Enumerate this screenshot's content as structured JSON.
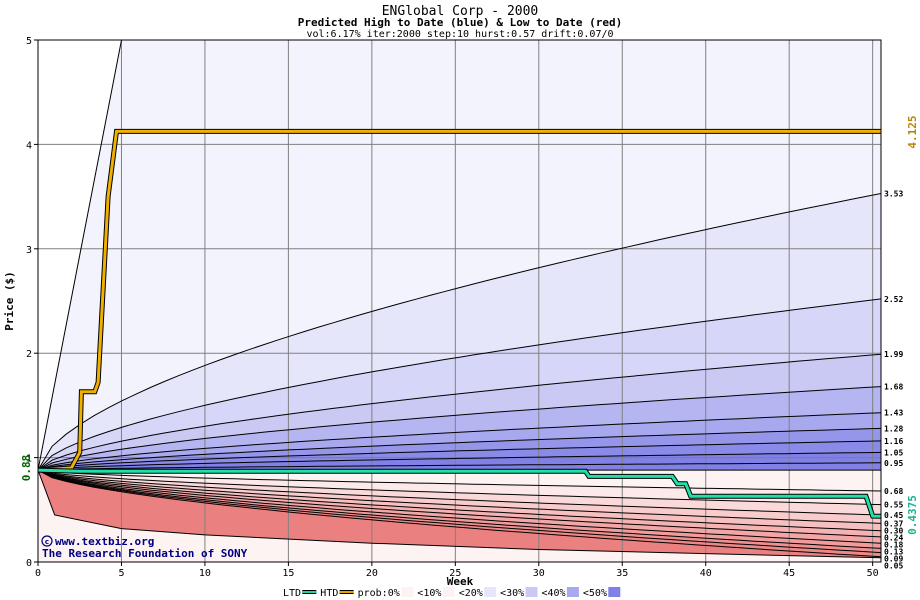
{
  "chart_data": {
    "type": "area",
    "title": "ENGlobal Corp - 2000",
    "subtitle": "Predicted High to Date (blue) &  Low to Date (red)",
    "params": "vol:6.17% iter:2000 step:10 hurst:0.57 drift:0.07/0",
    "xlabel": "Week",
    "ylabel": "Price ($)",
    "xlim": [
      0,
      50.5
    ],
    "ylim": [
      0,
      5
    ],
    "x_ticks": [
      "0",
      "5",
      "10",
      "15",
      "20",
      "25",
      "30",
      "35",
      "40",
      "45",
      "50"
    ],
    "y_ticks": [
      "0",
      "1",
      "2",
      "3",
      "4",
      "5"
    ],
    "grid": true,
    "start_price": 0.88,
    "start_price_label": "0.88",
    "high_marker": {
      "value": 4.125,
      "label": "4.125",
      "color": "#b8860b"
    },
    "low_marker": {
      "value": 0.4375,
      "label": "0.4375",
      "color": "#20b090"
    },
    "upper_levels": [
      {
        "value": 3.53,
        "label": "3.53"
      },
      {
        "value": 2.52,
        "label": "2.52"
      },
      {
        "value": 1.99,
        "label": "1.99"
      },
      {
        "value": 1.68,
        "label": "1.68"
      },
      {
        "value": 1.43,
        "label": "1.43"
      },
      {
        "value": 1.28,
        "label": "1.28"
      },
      {
        "value": 1.16,
        "label": "1.16"
      },
      {
        "value": 1.05,
        "label": "1.05"
      },
      {
        "value": 0.95,
        "label": "0.95"
      }
    ],
    "lower_levels": [
      {
        "value": 0.68,
        "label": "0.68"
      },
      {
        "value": 0.55,
        "label": "0.55"
      },
      {
        "value": 0.45,
        "label": "0.45"
      },
      {
        "value": 0.37,
        "label": "0.37"
      },
      {
        "value": 0.3,
        "label": "0.30"
      },
      {
        "value": 0.24,
        "label": "0.24"
      },
      {
        "value": 0.18,
        "label": "0.18"
      },
      {
        "value": 0.13,
        "label": "0.13"
      },
      {
        "value": 0.09,
        "label": "0.09"
      },
      {
        "value": 0.05,
        "label": "0.05"
      }
    ],
    "outer_upper": [
      [
        0,
        0.88
      ],
      [
        5,
        5.0
      ]
    ],
    "outer_lower": [
      [
        0,
        0.88
      ],
      [
        1,
        0.45
      ],
      [
        5,
        0.32
      ],
      [
        10,
        0.26
      ],
      [
        20,
        0.18
      ],
      [
        30,
        0.12
      ],
      [
        40,
        0.08
      ],
      [
        50.5,
        0.04
      ]
    ],
    "htd_series": {
      "name": "HTD",
      "points": [
        [
          0,
          0.88
        ],
        [
          2,
          0.9
        ],
        [
          2.5,
          1.05
        ],
        [
          2.6,
          1.63
        ],
        [
          3.4,
          1.63
        ],
        [
          3.6,
          1.72
        ],
        [
          4.2,
          3.5
        ],
        [
          4.7,
          4.125
        ],
        [
          50.5,
          4.125
        ]
      ]
    },
    "ltd_series": {
      "name": "LTD",
      "points": [
        [
          0,
          0.88
        ],
        [
          2.5,
          0.87
        ],
        [
          5,
          0.87
        ],
        [
          32.8,
          0.87
        ],
        [
          33,
          0.82
        ],
        [
          38,
          0.82
        ],
        [
          38.3,
          0.75
        ],
        [
          38.8,
          0.75
        ],
        [
          39.1,
          0.63
        ],
        [
          49.6,
          0.63
        ],
        [
          50,
          0.44
        ],
        [
          50.5,
          0.4375
        ]
      ]
    }
  },
  "legend": {
    "items": [
      {
        "label": "LTD",
        "color": "#20d0a0"
      },
      {
        "label": "HTD",
        "color": "#e8a000"
      },
      {
        "label": "prob:0%",
        "color": ""
      },
      {
        "label": "<10%",
        "color": "#fdf3f3"
      },
      {
        "label": "<20%",
        "color": "#e6e6fb"
      },
      {
        "label": "<30%",
        "color": "#c9c9f4"
      },
      {
        "label": "<40%",
        "color": "#a8a8ee"
      },
      {
        "label": "<50%",
        "color": "#8080e6"
      }
    ]
  },
  "credits": {
    "site": "www.textbiz.org",
    "org": "The Research Foundation of SONY"
  }
}
